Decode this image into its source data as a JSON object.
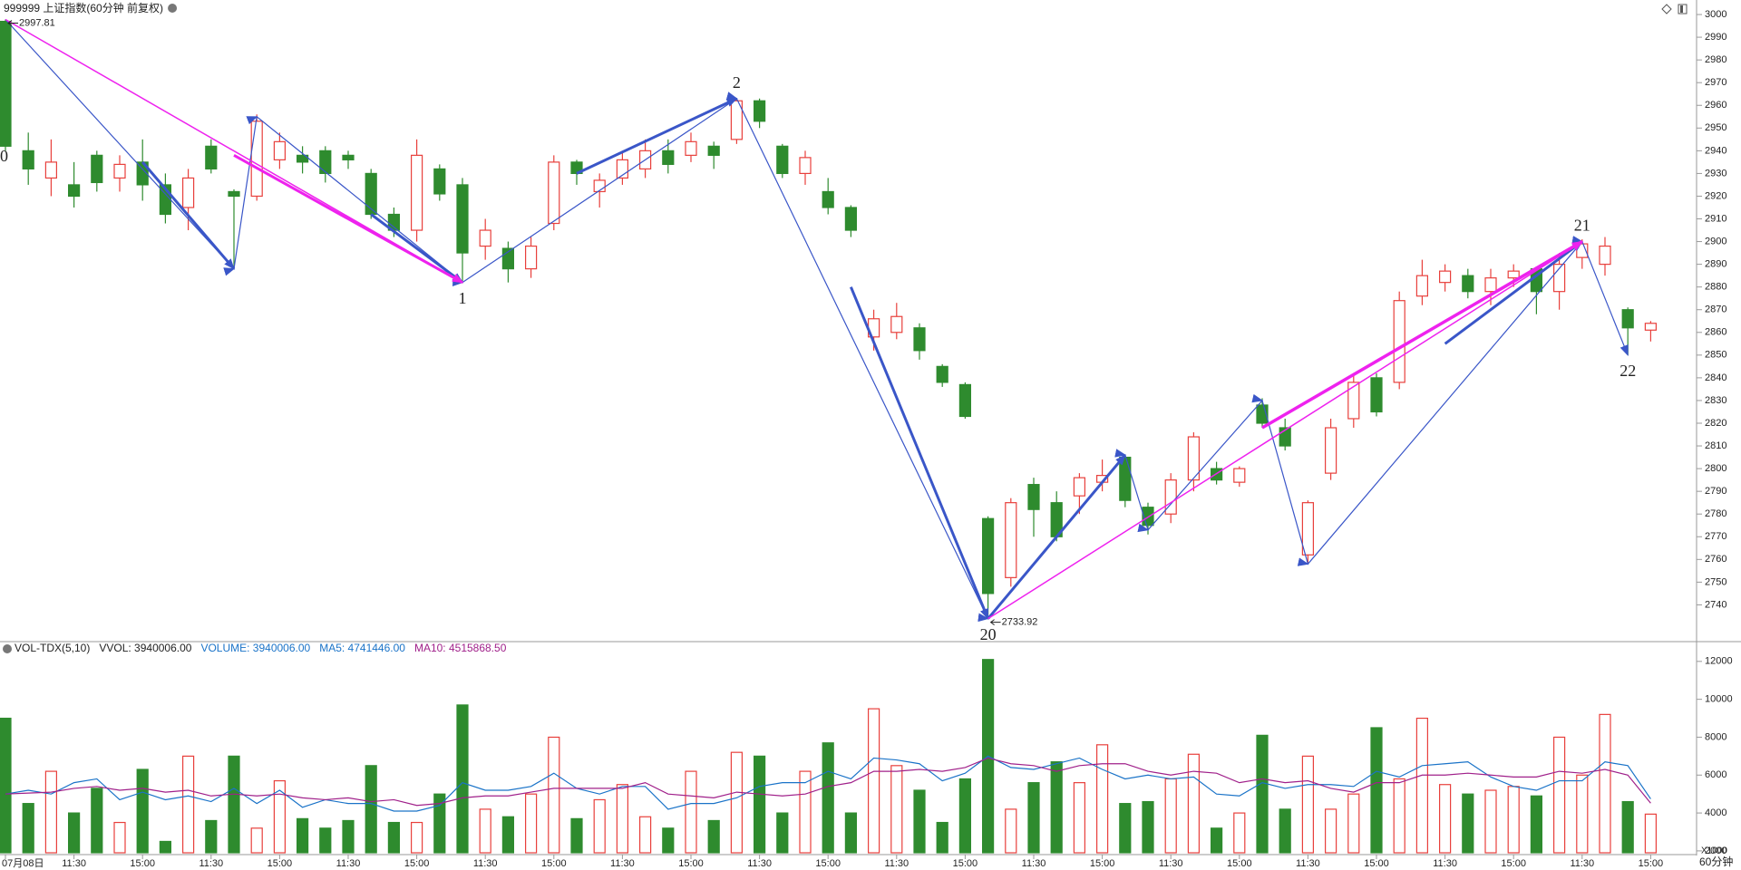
{
  "chart_data": [
    {
      "type": "candlestick",
      "title": "999999 上证指数(60分钟 前复权)",
      "open": [
        2997,
        2940,
        2928,
        2925,
        2938,
        2928,
        2935,
        2925,
        2915,
        2942,
        2922,
        2920,
        2936,
        2938,
        2940,
        2938,
        2930,
        2912,
        2905,
        2932,
        2925,
        2898,
        2897,
        2888,
        2908,
        2935,
        2922,
        2928,
        2932,
        2940,
        2938,
        2942,
        2945,
        2962,
        2942,
        2930,
        2922,
        2915,
        2858,
        2860,
        2862,
        2845,
        2837,
        2778,
        2752,
        2793,
        2785,
        2788,
        2794,
        2805,
        2783,
        2780,
        2795,
        2800,
        2794,
        2828,
        2818,
        2762,
        2798,
        2822,
        2840,
        2838,
        2876,
        2882,
        2885,
        2878,
        2884,
        2888,
        2878,
        2893,
        2890,
        2870,
        2861
      ],
      "high": [
        2997.81,
        2948,
        2945,
        2935,
        2940,
        2938,
        2945,
        2930,
        2932,
        2945,
        2923,
        2956,
        2948,
        2942,
        2942,
        2940,
        2932,
        2915,
        2945,
        2934,
        2928,
        2910,
        2900,
        2902,
        2938,
        2936,
        2930,
        2940,
        2945,
        2945,
        2948,
        2944,
        2963,
        2963,
        2943,
        2940,
        2928,
        2916,
        2870,
        2873,
        2864,
        2846,
        2838,
        2779,
        2787,
        2796,
        2790,
        2798,
        2804,
        2806,
        2785,
        2798,
        2816,
        2803,
        2801,
        2831,
        2822,
        2786,
        2822,
        2842,
        2842,
        2878,
        2892,
        2890,
        2888,
        2888,
        2890,
        2889,
        2895,
        2901,
        2902,
        2871,
        2865
      ],
      "low": [
        2940,
        2925,
        2920,
        2915,
        2922,
        2922,
        2918,
        2908,
        2905,
        2930,
        2888,
        2918,
        2932,
        2930,
        2926,
        2932,
        2910,
        2902,
        2900,
        2918,
        2882,
        2892,
        2882,
        2884,
        2905,
        2925,
        2915,
        2925,
        2928,
        2930,
        2935,
        2932,
        2943,
        2950,
        2928,
        2925,
        2912,
        2902,
        2852,
        2857,
        2848,
        2836,
        2822,
        2733.92,
        2748,
        2770,
        2768,
        2780,
        2790,
        2783,
        2771,
        2776,
        2790,
        2793,
        2792,
        2818,
        2808,
        2758,
        2795,
        2818,
        2823,
        2835,
        2872,
        2878,
        2875,
        2872,
        2880,
        2868,
        2870,
        2888,
        2885,
        2850,
        2856
      ],
      "close": [
        2942,
        2932,
        2935,
        2920,
        2926,
        2934,
        2925,
        2912,
        2928,
        2932,
        2920,
        2953,
        2944,
        2935,
        2930,
        2936,
        2912,
        2905,
        2938,
        2921,
        2895,
        2905,
        2888,
        2898,
        2935,
        2930,
        2927,
        2936,
        2940,
        2934,
        2944,
        2938,
        2962,
        2953,
        2930,
        2937,
        2915,
        2905,
        2866,
        2867,
        2852,
        2838,
        2823,
        2745,
        2785,
        2782,
        2770,
        2796,
        2797,
        2786,
        2775,
        2795,
        2814,
        2795,
        2800,
        2820,
        2810,
        2785,
        2818,
        2838,
        2825,
        2874,
        2885,
        2887,
        2878,
        2884,
        2887,
        2878,
        2890,
        2899,
        2898,
        2862,
        2864
      ],
      "up_color": "#e8403c",
      "down_color": "#2e8b2e",
      "ylim": [
        2725,
        3006
      ],
      "yticks": [
        2740,
        2750,
        2760,
        2770,
        2780,
        2790,
        2800,
        2810,
        2820,
        2830,
        2840,
        2850,
        2860,
        2870,
        2880,
        2890,
        2900,
        2910,
        2920,
        2930,
        2940,
        2950,
        2960,
        2970,
        2980,
        2990,
        3000
      ],
      "lines": [
        {
          "color": "#3a56c8",
          "width": 1.2,
          "points": [
            [
              0,
              2997.81
            ],
            [
              10,
              2888
            ],
            [
              11,
              2955
            ],
            [
              20,
              2882
            ],
            [
              32,
              2963
            ],
            [
              43,
              2733.92
            ],
            [
              49,
              2806
            ],
            [
              50,
              2773
            ],
            [
              55,
              2830
            ],
            [
              57,
              2758
            ],
            [
              69,
              2900
            ],
            [
              71,
              2850
            ]
          ]
        },
        {
          "color": "#3a56c8",
          "width": 3,
          "points": [
            [
              6,
              2935
            ],
            [
              10,
              2888
            ]
          ]
        },
        {
          "color": "#3a56c8",
          "width": 3,
          "points": [
            [
              16,
              2912
            ],
            [
              20,
              2882
            ]
          ]
        },
        {
          "color": "#3a56c8",
          "width": 3,
          "points": [
            [
              25,
              2930
            ],
            [
              32,
              2963
            ]
          ]
        },
        {
          "color": "#3a56c8",
          "width": 3,
          "points": [
            [
              37,
              2880
            ],
            [
              43,
              2733.92
            ]
          ]
        },
        {
          "color": "#3a56c8",
          "width": 3,
          "points": [
            [
              43,
              2733.92
            ],
            [
              49,
              2806
            ]
          ]
        },
        {
          "color": "#3a56c8",
          "width": 3,
          "points": [
            [
              63,
              2855
            ],
            [
              69,
              2900
            ]
          ]
        },
        {
          "color": "#ee22ee",
          "width": 1.5,
          "points": [
            [
              0,
              2997.81
            ],
            [
              20,
              2882
            ]
          ]
        },
        {
          "color": "#ee22ee",
          "width": 3,
          "points": [
            [
              10,
              2938
            ],
            [
              20,
              2882
            ]
          ]
        },
        {
          "color": "#ee22ee",
          "width": 1.5,
          "points": [
            [
              43,
              2733.92
            ],
            [
              69,
              2900
            ]
          ]
        },
        {
          "color": "#ee22ee",
          "width": 3.5,
          "points": [
            [
              55,
              2818
            ],
            [
              69,
              2900
            ]
          ]
        }
      ],
      "pivot_labels": [
        {
          "text": "0",
          "x": 0,
          "y": 2937,
          "anchor": "left"
        },
        {
          "text": "1",
          "x": 20,
          "y": 2882,
          "anchor": "below"
        },
        {
          "text": "2",
          "x": 32,
          "y": 2963,
          "anchor": "above"
        },
        {
          "text": "20",
          "x": 43,
          "y": 2733.92,
          "anchor": "below"
        },
        {
          "text": "21",
          "x": 69,
          "y": 2900,
          "anchor": "above"
        },
        {
          "text": "22",
          "x": 71,
          "y": 2850,
          "anchor": "below"
        }
      ],
      "price_labels": [
        {
          "text": "2997.81",
          "x": 0,
          "y": 2997.81
        },
        {
          "text": "2733.92",
          "x": 43,
          "y": 2733.92
        }
      ]
    },
    {
      "type": "bar",
      "title": "VOL-TDX(5,10)",
      "legend": [
        {
          "text": "VVOL: 3940006.00",
          "color": "#222222"
        },
        {
          "text": "VOLUME: 3940006.00",
          "color": "#1a73c8"
        },
        {
          "text": "MA5: 4741446.00",
          "color": "#1a73c8"
        },
        {
          "text": "MA10: 4515868.50",
          "color": "#a0208a"
        }
      ],
      "categories": [
        "07月08日",
        null,
        null,
        "11:30",
        null,
        null,
        "15:00",
        null,
        null,
        "11:30",
        null,
        null,
        "15:00",
        null,
        null,
        "11:30",
        null,
        null,
        "15:00",
        null,
        null,
        "11:30",
        null,
        null,
        "15:00",
        null,
        null,
        "11:30",
        null,
        null,
        "15:00",
        null,
        null,
        "11:30",
        null,
        null,
        "15:00",
        null,
        null,
        "11:30",
        null,
        null,
        "15:00",
        null,
        null,
        "11:30",
        null,
        null,
        "15:00",
        null,
        null,
        "11:30",
        null,
        null,
        "15:00",
        null,
        null,
        "11:30",
        null,
        null,
        "15:00",
        null,
        null,
        "11:30",
        null,
        null,
        "15:00",
        null,
        null,
        "11:30",
        null,
        null,
        "15:00"
      ],
      "values": [
        9000,
        4500,
        6200,
        4000,
        5300,
        3500,
        6300,
        2500,
        7000,
        3600,
        7000,
        3200,
        5700,
        3700,
        3200,
        3600,
        6500,
        3500,
        3500,
        5000,
        9700,
        4200,
        3800,
        5000,
        8000,
        3700,
        4700,
        5500,
        3800,
        3200,
        6200,
        3600,
        7200,
        7000,
        4000,
        6200,
        7700,
        4000,
        9500,
        6500,
        5200,
        3500,
        5800,
        12100,
        4200,
        5600,
        6700,
        5600,
        7600,
        4500,
        4600,
        5800,
        7100,
        3200,
        4000,
        8100,
        4200,
        7000,
        4200,
        5000,
        8500,
        5800,
        9000,
        5500,
        5000,
        5200,
        5400,
        4900,
        8000,
        6000,
        9200,
        4600,
        3940.006
      ],
      "lines": [
        {
          "color": "#1a73c8",
          "values": [
            5000,
            5200,
            5000,
            5600,
            5800,
            4700,
            5100,
            4700,
            4900,
            4600,
            5300,
            4500,
            5200,
            4300,
            4700,
            4500,
            4500,
            4100,
            4100,
            4400,
            5600,
            5200,
            5200,
            5400,
            6100,
            5300,
            5000,
            5400,
            5400,
            4200,
            4500,
            4500,
            4800,
            5400,
            5600,
            5600,
            6200,
            5800,
            6900,
            6800,
            6600,
            5700,
            6100,
            7000,
            6400,
            6300,
            6600,
            6900,
            6300,
            5800,
            6000,
            5800,
            5900,
            5000,
            4900,
            5600,
            5300,
            5500,
            5500,
            5400,
            6200,
            5900,
            6500,
            6600,
            6700,
            5900,
            5400,
            5200,
            5700,
            5700,
            6700,
            6500,
            4741.446
          ]
        },
        {
          "color": "#a0208a",
          "values": [
            5000,
            5050,
            5100,
            5300,
            5400,
            5200,
            5300,
            5100,
            5200,
            4900,
            5000,
            4900,
            5000,
            4800,
            4700,
            4800,
            4600,
            4700,
            4400,
            4500,
            4800,
            4900,
            4900,
            5100,
            5300,
            5300,
            5300,
            5300,
            5600,
            5000,
            4900,
            4800,
            5100,
            5000,
            4900,
            5000,
            5400,
            5600,
            6200,
            6200,
            6300,
            6200,
            6400,
            6900,
            6600,
            6500,
            6200,
            6500,
            6600,
            6600,
            6200,
            6000,
            6200,
            6100,
            5600,
            5800,
            5600,
            5700,
            5300,
            5100,
            5600,
            5600,
            6000,
            6000,
            6100,
            6000,
            5900,
            5900,
            6200,
            6100,
            6300,
            6000,
            4515.8685
          ]
        }
      ],
      "ylim": [
        1900,
        12900
      ],
      "yticks": [
        2000,
        4000,
        6000,
        8000,
        10000,
        12000
      ],
      "unit_label": "X1000",
      "period_label": "60分钟"
    }
  ]
}
